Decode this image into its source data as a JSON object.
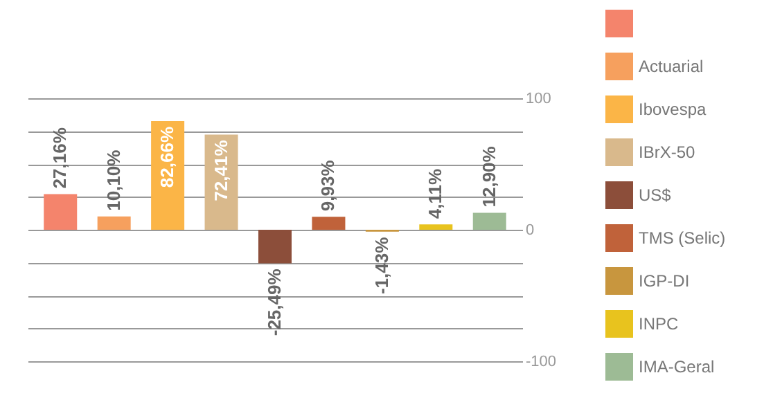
{
  "chart_data": {
    "type": "bar",
    "categories": [
      null,
      null,
      null,
      null,
      null,
      null,
      null,
      null,
      null
    ],
    "series": [
      {
        "color": "#f4846c",
        "values": [
          27.16,
          null,
          null,
          null,
          null,
          null,
          null,
          null,
          null
        ],
        "value_labels": [
          "27,16%",
          null,
          null,
          null,
          null,
          null,
          null,
          null,
          null
        ]
      },
      {
        "name": "Actuarial",
        "color": "#f6a05e",
        "values": [
          null,
          10.1,
          null,
          null,
          null,
          null,
          null,
          null,
          null
        ],
        "value_labels": [
          null,
          "10,10%",
          null,
          null,
          null,
          null,
          null,
          null,
          null
        ]
      },
      {
        "name": "Ibovespa",
        "color": "#fbb547",
        "values": [
          null,
          null,
          82.66,
          null,
          null,
          null,
          null,
          null,
          null
        ],
        "value_labels": [
          null,
          null,
          "82,66%",
          null,
          null,
          null,
          null,
          null,
          null
        ]
      },
      {
        "name": "IBrX-50",
        "color": "#d9b98c",
        "values": [
          null,
          null,
          null,
          72.41,
          null,
          null,
          null,
          null,
          null
        ],
        "value_labels": [
          null,
          null,
          null,
          "72,41%",
          null,
          null,
          null,
          null,
          null
        ]
      },
      {
        "name": "US$",
        "color": "#8c4e3a",
        "values": [
          null,
          null,
          null,
          null,
          -25.49,
          null,
          null,
          null,
          null
        ],
        "value_labels": [
          null,
          null,
          null,
          null,
          "-25,49%",
          null,
          null,
          null,
          null
        ]
      },
      {
        "name": "TMS (Selic)",
        "color": "#c0623a",
        "values": [
          null,
          null,
          null,
          null,
          null,
          9.93,
          null,
          null,
          null
        ],
        "value_labels": [
          null,
          null,
          null,
          null,
          null,
          "9,93%",
          null,
          null,
          null
        ]
      },
      {
        "name": "IGP-DI",
        "color": "#c8963e",
        "values": [
          null,
          null,
          null,
          null,
          null,
          null,
          -1.43,
          null,
          null
        ],
        "value_labels": [
          null,
          null,
          null,
          null,
          null,
          null,
          "-1,43%",
          null,
          null
        ]
      },
      {
        "name": "INPC",
        "color": "#e8c31e",
        "values": [
          null,
          null,
          null,
          null,
          null,
          null,
          null,
          4.11,
          null
        ],
        "value_labels": [
          null,
          null,
          null,
          null,
          null,
          null,
          null,
          "4,11%",
          null
        ]
      },
      {
        "name": "IMA-Geral",
        "color": "#9dbb95",
        "values": [
          null,
          null,
          null,
          null,
          null,
          null,
          null,
          null,
          12.9
        ],
        "value_labels": [
          null,
          null,
          null,
          null,
          null,
          null,
          null,
          null,
          "12,90%"
        ]
      }
    ],
    "ylim": [
      -100,
      100
    ],
    "yticks": [
      {
        "value": -100,
        "label": "-100"
      },
      {
        "value": -75,
        "label": null
      },
      {
        "value": -50,
        "label": null
      },
      {
        "value": -25,
        "label": null
      },
      {
        "value": 0,
        "label": "0"
      },
      {
        "value": 25,
        "label": null
      },
      {
        "value": 50,
        "label": null
      },
      {
        "value": 75,
        "label": null
      },
      {
        "value": 100,
        "label": "100"
      }
    ],
    "grid": "y",
    "legend": "right",
    "tick_labels": "y"
  }
}
